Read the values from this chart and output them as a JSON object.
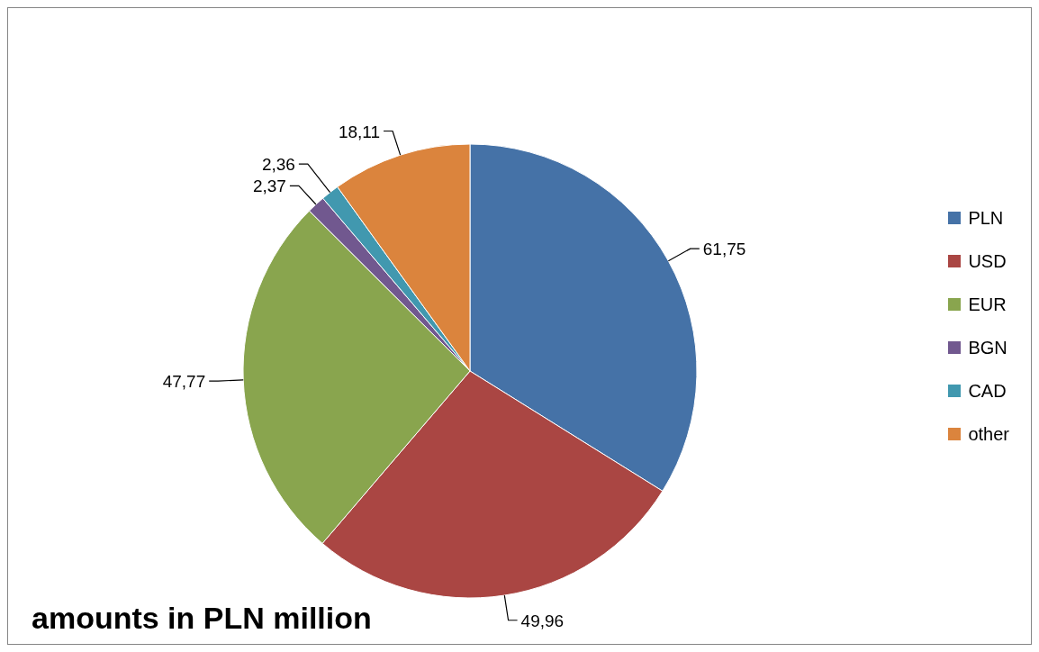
{
  "chart_data": {
    "type": "pie",
    "title": "amounts in PLN million",
    "categories": [
      "PLN",
      "USD",
      "EUR",
      "BGN",
      "CAD",
      "other"
    ],
    "values": [
      61.75,
      49.96,
      47.77,
      2.37,
      2.36,
      18.11
    ],
    "value_labels": [
      "61,75",
      "49,96",
      "47,77",
      "2,37",
      "2,36",
      "18,11"
    ],
    "colors": [
      "#4572a7",
      "#aa4643",
      "#89a54e",
      "#71588f",
      "#4198af",
      "#db843d"
    ],
    "legend": "right"
  }
}
